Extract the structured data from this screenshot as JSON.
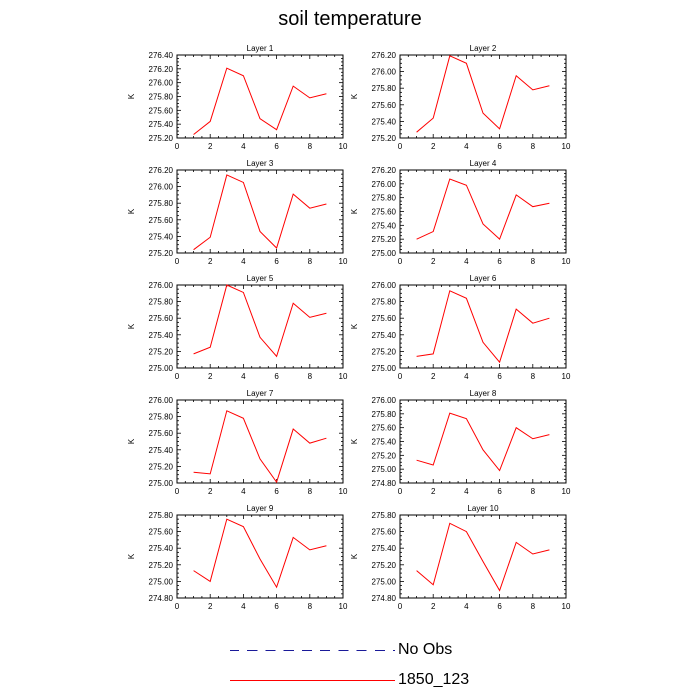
{
  "title": "soil temperature",
  "colors": {
    "model_line": "#ff0000",
    "obs_line": "#1a1a99",
    "axis": "#000000"
  },
  "legend": {
    "entries": [
      {
        "label": "No Obs",
        "style": "dashed",
        "color": "#1a1a99"
      },
      {
        "label": "1850_123",
        "style": "solid",
        "color": "#ff0000"
      }
    ]
  },
  "chart_data": [
    {
      "type": "line",
      "title": "Layer 1",
      "ylabel": "K",
      "xlim": [
        0,
        10
      ],
      "ylim": [
        275.2,
        276.4
      ],
      "x_ticks": [
        0,
        2,
        4,
        6,
        8,
        10
      ],
      "y_ticks": [
        "275.20",
        "275.40",
        "275.60",
        "275.80",
        "276.00",
        "276.20",
        "276.40"
      ],
      "series": [
        {
          "name": "1850_123",
          "x": [
            1,
            2,
            3,
            4,
            5,
            6,
            7,
            8,
            9
          ],
          "y": [
            275.25,
            275.44,
            276.21,
            276.1,
            275.48,
            275.32,
            275.95,
            275.78,
            275.84
          ]
        }
      ]
    },
    {
      "type": "line",
      "title": "Layer 2",
      "ylabel": "K",
      "xlim": [
        0,
        10
      ],
      "ylim": [
        275.2,
        276.2
      ],
      "x_ticks": [
        0,
        2,
        4,
        6,
        8,
        10
      ],
      "y_ticks": [
        "275.20",
        "275.40",
        "275.60",
        "275.80",
        "276.00",
        "276.20"
      ],
      "series": [
        {
          "name": "1850_123",
          "x": [
            1,
            2,
            3,
            4,
            5,
            6,
            7,
            8,
            9
          ],
          "y": [
            275.27,
            275.44,
            276.19,
            276.1,
            275.5,
            275.31,
            275.95,
            275.78,
            275.83
          ]
        }
      ]
    },
    {
      "type": "line",
      "title": "Layer 3",
      "ylabel": "K",
      "xlim": [
        0,
        10
      ],
      "ylim": [
        275.2,
        276.2
      ],
      "x_ticks": [
        0,
        2,
        4,
        6,
        8,
        10
      ],
      "y_ticks": [
        "275.20",
        "275.40",
        "275.60",
        "275.80",
        "276.00",
        "276.20"
      ],
      "series": [
        {
          "name": "1850_123",
          "x": [
            1,
            2,
            3,
            4,
            5,
            6,
            7,
            8,
            9
          ],
          "y": [
            275.24,
            275.39,
            276.14,
            276.05,
            275.46,
            275.26,
            275.91,
            275.74,
            275.79
          ]
        }
      ]
    },
    {
      "type": "line",
      "title": "Layer 4",
      "ylabel": "K",
      "xlim": [
        0,
        10
      ],
      "ylim": [
        275.0,
        276.2
      ],
      "x_ticks": [
        0,
        2,
        4,
        6,
        8,
        10
      ],
      "y_ticks": [
        "275.00",
        "275.20",
        "275.40",
        "275.60",
        "275.80",
        "276.00",
        "276.20"
      ],
      "series": [
        {
          "name": "1850_123",
          "x": [
            1,
            2,
            3,
            4,
            5,
            6,
            7,
            8,
            9
          ],
          "y": [
            275.2,
            275.31,
            276.07,
            275.98,
            275.42,
            275.2,
            275.84,
            275.67,
            275.72
          ]
        }
      ]
    },
    {
      "type": "line",
      "title": "Layer 5",
      "ylabel": "K",
      "xlim": [
        0,
        10
      ],
      "ylim": [
        275.0,
        276.0
      ],
      "x_ticks": [
        0,
        2,
        4,
        6,
        8,
        10
      ],
      "y_ticks": [
        "275.00",
        "275.20",
        "275.40",
        "275.60",
        "275.80",
        "276.00"
      ],
      "series": [
        {
          "name": "1850_123",
          "x": [
            1,
            2,
            3,
            4,
            5,
            6,
            7,
            8,
            9
          ],
          "y": [
            275.17,
            275.25,
            276.0,
            275.91,
            275.37,
            275.14,
            275.78,
            275.61,
            275.66
          ]
        }
      ]
    },
    {
      "type": "line",
      "title": "Layer 6",
      "ylabel": "K",
      "xlim": [
        0,
        10
      ],
      "ylim": [
        275.0,
        276.0
      ],
      "x_ticks": [
        0,
        2,
        4,
        6,
        8,
        10
      ],
      "y_ticks": [
        "275.00",
        "275.20",
        "275.40",
        "275.60",
        "275.80",
        "276.00"
      ],
      "series": [
        {
          "name": "1850_123",
          "x": [
            1,
            2,
            3,
            4,
            5,
            6,
            7,
            8,
            9
          ],
          "y": [
            275.14,
            275.17,
            275.93,
            275.84,
            275.31,
            275.07,
            275.71,
            275.54,
            275.6
          ]
        }
      ]
    },
    {
      "type": "line",
      "title": "Layer 7",
      "ylabel": "K",
      "xlim": [
        0,
        10
      ],
      "ylim": [
        275.0,
        276.0
      ],
      "x_ticks": [
        0,
        2,
        4,
        6,
        8,
        10
      ],
      "y_ticks": [
        "275.00",
        "275.20",
        "275.40",
        "275.60",
        "275.80",
        "276.00"
      ],
      "series": [
        {
          "name": "1850_123",
          "x": [
            1,
            2,
            3,
            4,
            5,
            6,
            7,
            8,
            9
          ],
          "y": [
            275.13,
            275.11,
            275.87,
            275.78,
            275.29,
            275.01,
            275.65,
            275.48,
            275.54
          ]
        }
      ]
    },
    {
      "type": "line",
      "title": "Layer 8",
      "ylabel": "K",
      "xlim": [
        0,
        10
      ],
      "ylim": [
        274.8,
        276.0
      ],
      "x_ticks": [
        0,
        2,
        4,
        6,
        8,
        10
      ],
      "y_ticks": [
        "274.80",
        "275.00",
        "275.20",
        "275.40",
        "275.60",
        "275.80",
        "276.00"
      ],
      "series": [
        {
          "name": "1850_123",
          "x": [
            1,
            2,
            3,
            4,
            5,
            6,
            7,
            8,
            9
          ],
          "y": [
            275.13,
            275.06,
            275.81,
            275.73,
            275.28,
            274.98,
            275.6,
            275.44,
            275.5
          ]
        }
      ]
    },
    {
      "type": "line",
      "title": "Layer 9",
      "ylabel": "K",
      "xlim": [
        0,
        10
      ],
      "ylim": [
        274.8,
        275.8
      ],
      "x_ticks": [
        0,
        2,
        4,
        6,
        8,
        10
      ],
      "y_ticks": [
        "274.80",
        "275.00",
        "275.20",
        "275.40",
        "275.60",
        "275.80"
      ],
      "series": [
        {
          "name": "1850_123",
          "x": [
            1,
            2,
            3,
            4,
            5,
            6,
            7,
            8,
            9
          ],
          "y": [
            275.13,
            275.0,
            275.75,
            275.66,
            275.27,
            274.93,
            275.53,
            275.38,
            275.43
          ]
        }
      ]
    },
    {
      "type": "line",
      "title": "Layer 10",
      "ylabel": "K",
      "xlim": [
        0,
        10
      ],
      "ylim": [
        274.8,
        275.8
      ],
      "x_ticks": [
        0,
        2,
        4,
        6,
        8,
        10
      ],
      "y_ticks": [
        "274.80",
        "275.00",
        "275.20",
        "275.40",
        "275.60",
        "275.80"
      ],
      "series": [
        {
          "name": "1850_123",
          "x": [
            1,
            2,
            3,
            4,
            5,
            6,
            7,
            8,
            9
          ],
          "y": [
            275.13,
            274.96,
            275.7,
            275.6,
            275.24,
            274.89,
            275.47,
            275.33,
            275.38
          ]
        }
      ]
    }
  ]
}
